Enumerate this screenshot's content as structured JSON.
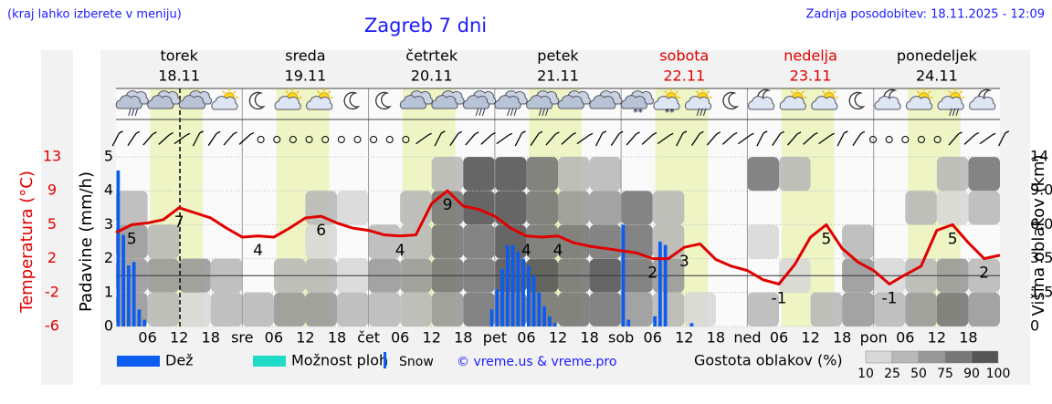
{
  "header": {
    "note": "(kraj lahko izberete v meniju)",
    "title": "Zagreb 7 dni",
    "updated": "Zadnja posodobitev: 18.11.2025 - 12:09"
  },
  "chart_data": {
    "type": "meteogram",
    "days": [
      {
        "name": "torek",
        "date": "18.11",
        "color": "#000000"
      },
      {
        "name": "sreda",
        "date": "19.11",
        "color": "#000000"
      },
      {
        "name": "četrtek",
        "date": "20.11",
        "color": "#000000"
      },
      {
        "name": "petek",
        "date": "21.11",
        "color": "#000000"
      },
      {
        "name": "sobota",
        "date": "22.11",
        "color": "#e00000"
      },
      {
        "name": "nedelja",
        "date": "23.11",
        "color": "#e00000"
      },
      {
        "name": "ponedeljek",
        "date": "24.11",
        "color": "#000000"
      }
    ],
    "xticklabels": [
      "06",
      "12",
      "18",
      "sre",
      "06",
      "12",
      "18",
      "čet",
      "06",
      "12",
      "18",
      "pet",
      "06",
      "12",
      "18",
      "sob",
      "06",
      "12",
      "18",
      "ned",
      "06",
      "12",
      "18",
      "pon",
      "06",
      "12",
      "18"
    ],
    "ylabel": "Padavine (mm/h)",
    "ylim": [
      0,
      5
    ],
    "yticks": [
      0,
      1,
      2,
      3,
      4,
      5
    ],
    "grid": true,
    "temp_label": "Temperatura (°C)",
    "temp_lim": [
      -6,
      13
    ],
    "temp_ticks": [
      -6,
      -2,
      2,
      5,
      9,
      13
    ],
    "y2label": "Višina oblakov (km)",
    "y2lim": [
      0,
      14
    ],
    "y2ticks": [
      0,
      1.5,
      3.5,
      {
        "value": 6,
        "label": "6.0"
      },
      {
        "value": 9,
        "label": "9.0"
      },
      14
    ],
    "temperature": {
      "color": "#e00000",
      "values": [
        4.3,
        5,
        5.2,
        5.6,
        7,
        6.4,
        5.8,
        4.7,
        3.9,
        4,
        3.9,
        4.7,
        5.8,
        6,
        5.2,
        4.7,
        4.5,
        4.1,
        4,
        4.1,
        7.5,
        9,
        7.2,
        6.8,
        6,
        4.7,
        4,
        3.9,
        4,
        3.4,
        3.1,
        2.9,
        2.7,
        2.5,
        2,
        2,
        3,
        3.3,
        1.9,
        1.1,
        0.6,
        -0.5,
        -1,
        1.3,
        3.9,
        5,
        2.9,
        1.6,
        0.6,
        -1,
        0.1,
        1.1,
        4.5,
        5,
        3.4,
        2,
        2.3
      ],
      "value_labels": [
        null,
        "5",
        null,
        null,
        "7",
        null,
        null,
        null,
        null,
        "4",
        null,
        null,
        null,
        "6",
        null,
        null,
        null,
        null,
        "4",
        null,
        null,
        "9",
        null,
        null,
        null,
        null,
        "4",
        null,
        "4",
        null,
        null,
        null,
        null,
        null,
        "2",
        null,
        "3",
        null,
        null,
        null,
        null,
        null,
        "-1",
        null,
        null,
        "5",
        null,
        null,
        null,
        "-1",
        null,
        null,
        null,
        "5",
        null,
        "2",
        null
      ]
    },
    "series": [
      {
        "name": "Dež",
        "color": "#0d5cf0",
        "values": [
          4.6,
          2.7,
          1.8,
          1.9,
          0.5,
          0.2,
          0,
          0,
          0,
          0,
          0,
          0,
          0,
          0,
          0,
          0,
          0,
          0,
          0,
          0,
          0,
          0,
          0,
          0,
          0,
          0,
          0,
          0,
          0,
          0,
          0,
          0,
          0,
          0,
          0,
          0,
          0,
          0,
          0,
          0,
          0,
          0,
          0,
          0,
          0,
          0,
          0,
          0,
          0,
          0,
          0,
          0,
          0,
          0,
          0,
          0,
          0,
          0,
          0,
          0,
          0,
          0,
          0,
          0,
          0,
          0,
          0,
          0,
          0,
          0,
          0,
          0.5,
          1.1,
          1.7,
          2.4,
          2.4,
          2.2,
          2,
          1.8,
          1.5,
          1,
          0.6,
          0.3,
          0.1,
          0,
          0,
          0,
          0,
          0,
          0,
          0,
          0,
          0,
          0,
          0,
          0,
          3,
          0.2,
          0,
          0,
          0,
          0,
          0.3,
          2.5,
          2.4,
          0,
          0,
          0,
          0,
          0.1,
          0,
          0,
          0,
          0,
          0,
          0,
          0,
          0,
          0,
          0,
          0,
          0,
          0,
          0,
          0,
          0,
          0,
          0,
          0,
          0,
          0,
          0,
          0,
          0,
          0,
          0,
          0,
          0,
          0,
          0,
          0,
          0,
          0,
          0,
          0,
          0,
          0,
          0,
          0,
          0,
          0,
          0,
          0,
          0,
          0,
          0,
          0,
          0,
          0,
          0,
          0,
          0,
          0,
          0,
          0,
          0,
          0,
          0
        ]
      }
    ],
    "legend_extra": [
      {
        "name": "Možnost ploh",
        "color": "#1fdcc6"
      },
      {
        "name": "Snow",
        "color": "#0d5cf0"
      }
    ],
    "copyright": "© vreme.us & vreme.pro",
    "cloud": {
      "title": "Gostota oblakov (%)",
      "legend_ticks": [
        10,
        25,
        50,
        75,
        90,
        100
      ],
      "colors": [
        "#d8d8d8",
        "#b9b9b9",
        "#999999",
        "#777777",
        "#555555"
      ],
      "values": [
        [
          50,
          50,
          50,
          25,
          0
        ],
        [
          25,
          50,
          25,
          0,
          0
        ],
        [
          10,
          50,
          0,
          0,
          0
        ],
        [
          25,
          25,
          0,
          0,
          0
        ],
        [
          25,
          0,
          0,
          0,
          0
        ],
        [
          50,
          25,
          0,
          0,
          0
        ],
        [
          50,
          25,
          10,
          25,
          0
        ],
        [
          25,
          10,
          0,
          10,
          0
        ],
        [
          25,
          50,
          25,
          0,
          0
        ],
        [
          25,
          50,
          25,
          25,
          0
        ],
        [
          50,
          75,
          75,
          75,
          25
        ],
        [
          75,
          75,
          75,
          90,
          90
        ],
        [
          75,
          90,
          90,
          90,
          90
        ],
        [
          75,
          90,
          75,
          75,
          75
        ],
        [
          75,
          75,
          75,
          50,
          25
        ],
        [
          75,
          90,
          75,
          50,
          25
        ],
        [
          50,
          75,
          75,
          75,
          0
        ],
        [
          25,
          50,
          25,
          25,
          0
        ],
        [
          10,
          0,
          0,
          0,
          0
        ],
        [
          0,
          0,
          0,
          0,
          0
        ],
        [
          25,
          0,
          10,
          0,
          75
        ],
        [
          0,
          10,
          0,
          0,
          25
        ],
        [
          25,
          0,
          0,
          0,
          0
        ],
        [
          50,
          50,
          25,
          0,
          0
        ],
        [
          25,
          10,
          0,
          0,
          0
        ],
        [
          50,
          25,
          0,
          25,
          0
        ],
        [
          75,
          50,
          0,
          10,
          25
        ],
        [
          50,
          25,
          0,
          25,
          75
        ]
      ]
    }
  }
}
